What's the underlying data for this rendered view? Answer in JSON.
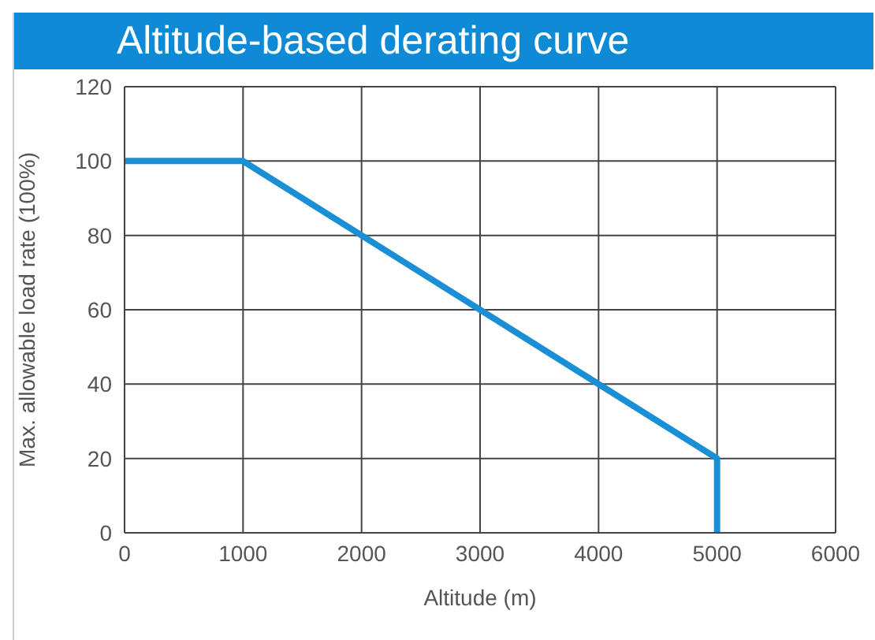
{
  "chart_data": {
    "type": "line",
    "title": "Altitude-based derating curve",
    "xlabel": "Altitude (m)",
    "ylabel": "Max. allowable load rate (100%)",
    "x": [
      0,
      1000,
      5000,
      5000
    ],
    "series": [
      {
        "color": "#1a8fd6",
        "values": [
          100,
          100,
          20,
          0
        ]
      }
    ],
    "xlim": [
      0,
      6000
    ],
    "xticks": [
      0,
      1000,
      2000,
      3000,
      4000,
      5000,
      6000
    ],
    "ylim": [
      0,
      120
    ],
    "yticks": [
      0,
      20,
      40,
      60,
      80,
      100,
      120
    ],
    "grid": true,
    "marker": "none",
    "line_style": "solid",
    "legend": false
  }
}
